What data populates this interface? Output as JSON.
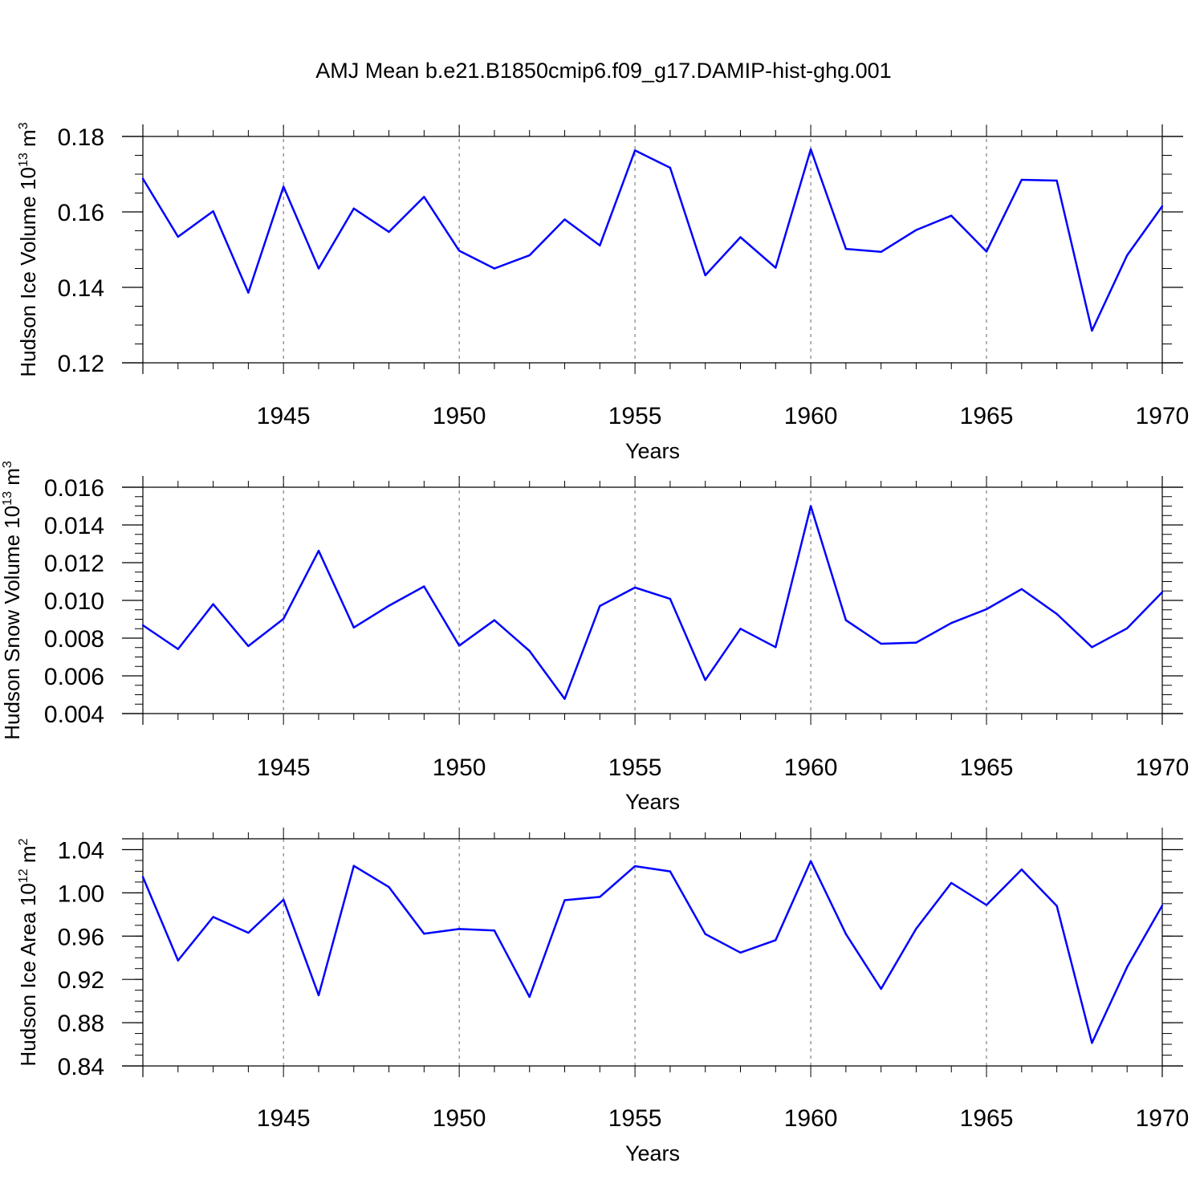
{
  "title": "AMJ Mean b.e21.B1850cmip6.f09_g17.DAMIP-hist-ghg.001",
  "colors": {
    "line": "#0000ff",
    "axis": "#000000",
    "grid": "#666666"
  },
  "chart_data": [
    {
      "type": "line",
      "ylabel": "Hudson Ice Volume",
      "yunit_base": "10",
      "yunit_exp": "13",
      "yunit_tail": "m",
      "yunit_tail_exp": "3",
      "xlabel": "Years",
      "xlim": [
        1941,
        1970
      ],
      "ylim": [
        0.12,
        0.18
      ],
      "yticks": [
        0.12,
        0.14,
        0.16,
        0.18
      ],
      "ytick_labels": [
        "0.12",
        "0.14",
        "0.16",
        "0.18"
      ],
      "yminor_step": 0.005,
      "xticks": [
        1945,
        1950,
        1955,
        1960,
        1965,
        1970
      ],
      "xtick_labels": [
        "1945",
        "1950",
        "1955",
        "1960",
        "1965",
        "1970"
      ],
      "grid": "vertical dashed at major x ticks",
      "x": [
        1941,
        1942,
        1943,
        1944,
        1945,
        1946,
        1947,
        1948,
        1949,
        1950,
        1951,
        1952,
        1953,
        1954,
        1955,
        1956,
        1957,
        1958,
        1959,
        1960,
        1961,
        1962,
        1963,
        1964,
        1965,
        1966,
        1967,
        1968,
        1969,
        1970
      ],
      "values": [
        0.1688,
        0.1534,
        0.1602,
        0.1386,
        0.1667,
        0.145,
        0.1609,
        0.1547,
        0.164,
        0.1497,
        0.145,
        0.1485,
        0.158,
        0.1511,
        0.1763,
        0.1717,
        0.1432,
        0.1533,
        0.1452,
        0.1766,
        0.1502,
        0.1494,
        0.1552,
        0.159,
        0.1495,
        0.1685,
        0.1683,
        0.1285,
        0.1485,
        0.1615
      ]
    },
    {
      "type": "line",
      "ylabel": "Hudson Snow Volume",
      "yunit_base": "10",
      "yunit_exp": "13",
      "yunit_tail": "m",
      "yunit_tail_exp": "3",
      "xlabel": "Years",
      "xlim": [
        1941,
        1970
      ],
      "ylim": [
        0.004,
        0.016
      ],
      "yticks": [
        0.004,
        0.006,
        0.008,
        0.01,
        0.012,
        0.014,
        0.016
      ],
      "ytick_labels": [
        "0.004",
        "0.006",
        "0.008",
        "0.010",
        "0.012",
        "0.014",
        "0.016"
      ],
      "yminor_step": 0.0005,
      "xticks": [
        1945,
        1950,
        1955,
        1960,
        1965,
        1970
      ],
      "xtick_labels": [
        "1945",
        "1950",
        "1955",
        "1960",
        "1965",
        "1970"
      ],
      "grid": "vertical dashed at major x ticks",
      "x": [
        1941,
        1942,
        1943,
        1944,
        1945,
        1946,
        1947,
        1948,
        1949,
        1950,
        1951,
        1952,
        1953,
        1954,
        1955,
        1956,
        1957,
        1958,
        1959,
        1960,
        1961,
        1962,
        1963,
        1964,
        1965,
        1966,
        1967,
        1968,
        1969,
        1970
      ],
      "values": [
        0.00868,
        0.00742,
        0.0098,
        0.00758,
        0.00902,
        0.01263,
        0.00856,
        0.00972,
        0.01074,
        0.0076,
        0.00895,
        0.00732,
        0.00478,
        0.0097,
        0.01068,
        0.01008,
        0.00578,
        0.0085,
        0.00752,
        0.015,
        0.00895,
        0.0077,
        0.00776,
        0.0088,
        0.00953,
        0.0106,
        0.00928,
        0.00752,
        0.00852,
        0.01044
      ]
    },
    {
      "type": "line",
      "ylabel": "Hudson Ice Area",
      "yunit_base": "10",
      "yunit_exp": "12",
      "yunit_tail": "m",
      "yunit_tail_exp": "2",
      "xlabel": "Years",
      "xlim": [
        1941,
        1970
      ],
      "ylim": [
        0.84,
        1.05
      ],
      "yticks": [
        0.84,
        0.88,
        0.92,
        0.96,
        1.0,
        1.04
      ],
      "ytick_labels": [
        "0.84",
        "0.88",
        "0.92",
        "0.96",
        "1.00",
        "1.04"
      ],
      "yminor_step": 0.01,
      "xticks": [
        1945,
        1950,
        1955,
        1960,
        1965,
        1970
      ],
      "xtick_labels": [
        "1945",
        "1950",
        "1955",
        "1960",
        "1965",
        "1970"
      ],
      "grid": "vertical dashed at major x ticks",
      "x": [
        1941,
        1942,
        1943,
        1944,
        1945,
        1946,
        1947,
        1948,
        1949,
        1950,
        1951,
        1952,
        1953,
        1954,
        1955,
        1956,
        1957,
        1958,
        1959,
        1960,
        1961,
        1962,
        1963,
        1964,
        1965,
        1966,
        1967,
        1968,
        1969,
        1970
      ],
      "values": [
        1.0147,
        0.9375,
        0.9777,
        0.9631,
        0.9937,
        0.9054,
        1.025,
        1.0053,
        0.9622,
        0.9666,
        0.9652,
        0.9038,
        0.9932,
        0.9963,
        1.0247,
        1.0199,
        0.9619,
        0.9448,
        0.9563,
        1.0294,
        0.9619,
        0.9112,
        0.9669,
        1.0092,
        0.9888,
        1.0216,
        0.988,
        0.8613,
        0.9314,
        0.9883
      ]
    }
  ]
}
